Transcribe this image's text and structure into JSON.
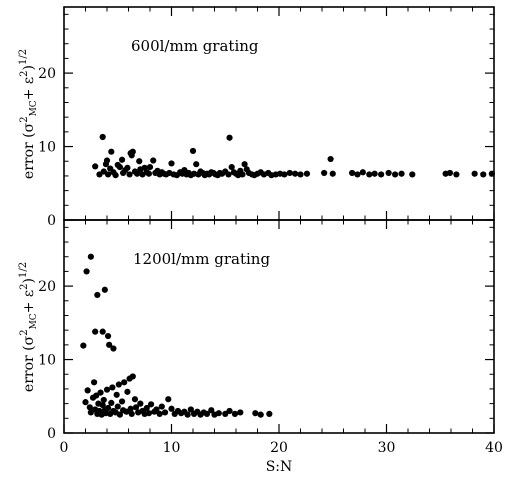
{
  "chart_data": [
    {
      "type": "scatter",
      "panel_label": "600l/mm grating",
      "xlabel": "S:N",
      "ylabel": "error (σ²MC+ ε²)^1/2",
      "xlim": [
        0,
        40
      ],
      "ylim": [
        0,
        29
      ],
      "xticks": [
        0,
        10,
        20,
        30,
        40
      ],
      "yticks": [
        0,
        10,
        20
      ],
      "ytick_labels": [
        "0",
        "10",
        "20"
      ],
      "xtick_labels": [
        "",
        "",
        "",
        "",
        ""
      ],
      "grid": false,
      "points": [
        [
          2.9,
          7.3
        ],
        [
          3.3,
          6.2
        ],
        [
          3.6,
          11.3
        ],
        [
          3.7,
          6.6
        ],
        [
          3.9,
          7.6
        ],
        [
          4.0,
          8.1
        ],
        [
          4.1,
          6.2
        ],
        [
          4.3,
          7.0
        ],
        [
          4.4,
          9.3
        ],
        [
          4.6,
          6.5
        ],
        [
          4.8,
          6.1
        ],
        [
          5.0,
          7.5
        ],
        [
          5.2,
          7.2
        ],
        [
          5.4,
          8.2
        ],
        [
          5.5,
          6.4
        ],
        [
          5.7,
          6.8
        ],
        [
          5.9,
          7.1
        ],
        [
          6.1,
          6.2
        ],
        [
          6.2,
          9.1
        ],
        [
          6.3,
          8.8
        ],
        [
          6.4,
          9.3
        ],
        [
          6.6,
          6.6
        ],
        [
          6.8,
          6.3
        ],
        [
          7.0,
          8.0
        ],
        [
          7.1,
          6.9
        ],
        [
          7.3,
          6.2
        ],
        [
          7.5,
          7.1
        ],
        [
          7.7,
          6.5
        ],
        [
          7.9,
          6.3
        ],
        [
          8.0,
          7.2
        ],
        [
          8.3,
          8.1
        ],
        [
          8.5,
          6.4
        ],
        [
          8.7,
          6.7
        ],
        [
          8.9,
          6.2
        ],
        [
          9.1,
          6.5
        ],
        [
          9.3,
          6.3
        ],
        [
          9.5,
          6.2
        ],
        [
          9.8,
          6.4
        ],
        [
          10.0,
          7.7
        ],
        [
          10.2,
          6.2
        ],
        [
          10.5,
          6.1
        ],
        [
          10.8,
          6.5
        ],
        [
          11.0,
          6.3
        ],
        [
          11.2,
          6.8
        ],
        [
          11.4,
          6.2
        ],
        [
          11.6,
          6.4
        ],
        [
          11.8,
          6.1
        ],
        [
          12.0,
          9.4
        ],
        [
          12.1,
          6.3
        ],
        [
          12.3,
          7.6
        ],
        [
          12.5,
          6.2
        ],
        [
          12.7,
          6.6
        ],
        [
          12.9,
          6.4
        ],
        [
          13.1,
          6.1
        ],
        [
          13.3,
          6.3
        ],
        [
          13.5,
          6.2
        ],
        [
          13.7,
          6.5
        ],
        [
          13.9,
          6.4
        ],
        [
          14.1,
          6.2
        ],
        [
          14.3,
          6.1
        ],
        [
          14.5,
          6.4
        ],
        [
          14.7,
          6.3
        ],
        [
          15.0,
          6.6
        ],
        [
          15.3,
          6.2
        ],
        [
          15.4,
          11.2
        ],
        [
          15.6,
          7.2
        ],
        [
          15.8,
          6.5
        ],
        [
          16.0,
          6.3
        ],
        [
          16.2,
          6.1
        ],
        [
          16.4,
          6.7
        ],
        [
          16.6,
          6.2
        ],
        [
          16.8,
          7.6
        ],
        [
          17.0,
          6.9
        ],
        [
          17.2,
          6.4
        ],
        [
          17.5,
          6.2
        ],
        [
          17.7,
          6.1
        ],
        [
          18.0,
          6.3
        ],
        [
          18.3,
          6.5
        ],
        [
          18.6,
          6.2
        ],
        [
          19.0,
          6.4
        ],
        [
          19.3,
          6.1
        ],
        [
          19.7,
          6.2
        ],
        [
          20.1,
          6.3
        ],
        [
          20.5,
          6.2
        ],
        [
          21.0,
          6.4
        ],
        [
          21.5,
          6.3
        ],
        [
          22.0,
          6.2
        ],
        [
          22.6,
          6.3
        ],
        [
          24.2,
          6.4
        ],
        [
          24.8,
          8.3
        ],
        [
          25.0,
          6.3
        ],
        [
          26.8,
          6.4
        ],
        [
          27.3,
          6.2
        ],
        [
          27.8,
          6.5
        ],
        [
          28.4,
          6.2
        ],
        [
          28.9,
          6.3
        ],
        [
          29.5,
          6.2
        ],
        [
          30.2,
          6.4
        ],
        [
          30.8,
          6.2
        ],
        [
          31.4,
          6.3
        ],
        [
          32.4,
          6.2
        ],
        [
          35.5,
          6.3
        ],
        [
          35.9,
          6.4
        ],
        [
          36.5,
          6.2
        ],
        [
          38.2,
          6.3
        ],
        [
          39.0,
          6.2
        ],
        [
          39.8,
          6.3
        ]
      ]
    },
    {
      "type": "scatter",
      "panel_label": "1200l/mm grating",
      "xlabel": "S:N",
      "ylabel": "error (σ²MC+ ε²)^1/2",
      "xlim": [
        0,
        40
      ],
      "ylim": [
        0,
        29
      ],
      "xticks": [
        0,
        10,
        20,
        30,
        40
      ],
      "yticks": [
        0,
        10,
        20
      ],
      "ytick_labels": [
        "0",
        "10",
        "20"
      ],
      "xtick_labels": [
        "0",
        "10",
        "20",
        "30",
        "40"
      ],
      "grid": false,
      "points": [
        [
          1.8,
          11.9
        ],
        [
          2.1,
          22.0
        ],
        [
          2.5,
          24.0
        ],
        [
          2.9,
          13.8
        ],
        [
          3.1,
          18.8
        ],
        [
          3.6,
          13.8
        ],
        [
          3.8,
          19.5
        ],
        [
          4.1,
          13.2
        ],
        [
          4.2,
          12.0
        ],
        [
          4.6,
          11.5
        ],
        [
          2.0,
          4.2
        ],
        [
          2.2,
          5.8
        ],
        [
          2.4,
          3.5
        ],
        [
          2.5,
          2.8
        ],
        [
          2.7,
          4.8
        ],
        [
          2.8,
          6.9
        ],
        [
          2.9,
          3.2
        ],
        [
          3.0,
          5.1
        ],
        [
          3.1,
          2.6
        ],
        [
          3.2,
          4.0
        ],
        [
          3.3,
          3.0
        ],
        [
          3.4,
          5.5
        ],
        [
          3.5,
          2.5
        ],
        [
          3.6,
          3.8
        ],
        [
          3.7,
          4.5
        ],
        [
          3.8,
          3.1
        ],
        [
          3.9,
          2.7
        ],
        [
          4.0,
          5.9
        ],
        [
          4.1,
          3.4
        ],
        [
          4.3,
          2.6
        ],
        [
          4.4,
          4.1
        ],
        [
          4.5,
          6.2
        ],
        [
          4.6,
          3.0
        ],
        [
          4.8,
          2.8
        ],
        [
          4.9,
          5.2
        ],
        [
          5.0,
          3.6
        ],
        [
          5.1,
          6.6
        ],
        [
          5.2,
          2.5
        ],
        [
          5.4,
          4.3
        ],
        [
          5.5,
          3.1
        ],
        [
          5.6,
          6.9
        ],
        [
          5.8,
          2.9
        ],
        [
          5.9,
          5.6
        ],
        [
          6.1,
          7.4
        ],
        [
          6.2,
          3.3
        ],
        [
          6.3,
          2.6
        ],
        [
          6.4,
          7.7
        ],
        [
          6.6,
          4.6
        ],
        [
          6.7,
          3.5
        ],
        [
          6.9,
          2.8
        ],
        [
          7.1,
          4.0
        ],
        [
          7.3,
          3.0
        ],
        [
          7.5,
          2.6
        ],
        [
          7.7,
          3.4
        ],
        [
          7.9,
          2.7
        ],
        [
          8.1,
          3.9
        ],
        [
          8.4,
          2.9
        ],
        [
          8.6,
          3.2
        ],
        [
          8.9,
          2.6
        ],
        [
          9.1,
          3.6
        ],
        [
          9.4,
          2.8
        ],
        [
          9.7,
          4.6
        ],
        [
          10.0,
          3.3
        ],
        [
          10.3,
          2.6
        ],
        [
          10.6,
          3.0
        ],
        [
          10.9,
          2.7
        ],
        [
          11.2,
          2.9
        ],
        [
          11.5,
          2.5
        ],
        [
          11.8,
          3.2
        ],
        [
          12.1,
          2.6
        ],
        [
          12.4,
          2.9
        ],
        [
          12.7,
          2.5
        ],
        [
          13.0,
          2.8
        ],
        [
          13.3,
          2.6
        ],
        [
          13.7,
          3.1
        ],
        [
          14.0,
          2.5
        ],
        [
          14.4,
          2.7
        ],
        [
          15.0,
          2.6
        ],
        [
          15.4,
          3.0
        ],
        [
          15.9,
          2.6
        ],
        [
          16.4,
          2.8
        ],
        [
          17.8,
          2.7
        ],
        [
          18.3,
          2.5
        ],
        [
          19.1,
          2.6
        ]
      ]
    }
  ]
}
